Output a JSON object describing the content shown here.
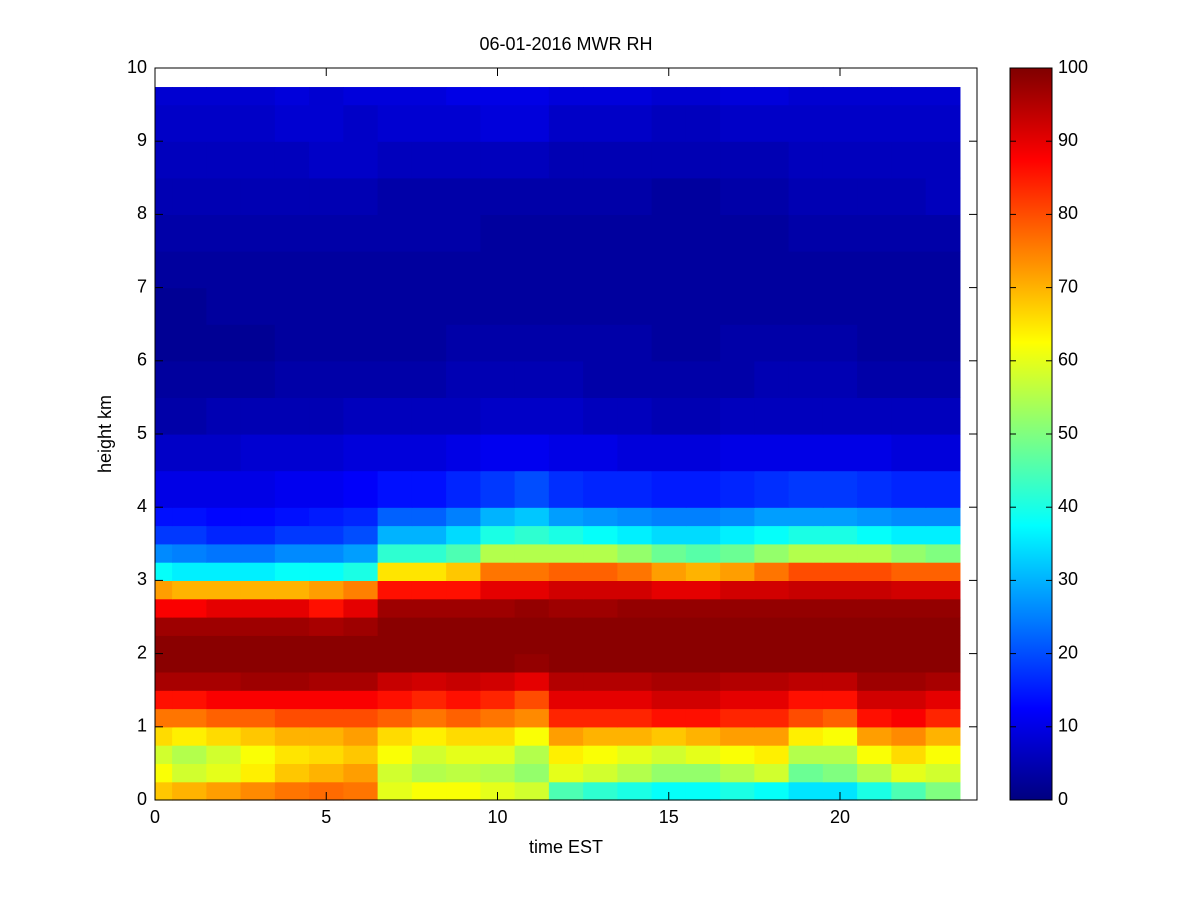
{
  "chart_data": {
    "type": "heatmap",
    "title": "06-01-2016 MWR RH",
    "xlabel": "time EST",
    "ylabel": "height km",
    "colormap": "jet",
    "x_edges": [
      0,
      0.5,
      1.5,
      2.5,
      3.5,
      4.5,
      5.5,
      6.5,
      7.5,
      8.5,
      9.5,
      10.5,
      11.5,
      12.5,
      13.5,
      14.5,
      15.5,
      16.5,
      17.5,
      18.5,
      19.5,
      20.5,
      21.5,
      22.5,
      23.5
    ],
    "y_edges": [
      0,
      0.25,
      0.5,
      0.75,
      1,
      1.25,
      1.5,
      1.75,
      2,
      2.25,
      2.5,
      2.75,
      3,
      3.25,
      3.5,
      3.75,
      4,
      4.5,
      5,
      5.5,
      6,
      6.5,
      7,
      7.5,
      8,
      8.5,
      9,
      9.5,
      9.74
    ],
    "values": [
      [
        68,
        70,
        72,
        74,
        76,
        77,
        76,
        60,
        62,
        62,
        60,
        58,
        45,
        42,
        40,
        38,
        38,
        40,
        38,
        35,
        35,
        40,
        45,
        50
      ],
      [
        62,
        58,
        60,
        64,
        68,
        70,
        72,
        58,
        55,
        56,
        55,
        52,
        60,
        58,
        55,
        52,
        52,
        55,
        58,
        48,
        50,
        55,
        60,
        58
      ],
      [
        58,
        55,
        58,
        62,
        65,
        66,
        68,
        62,
        58,
        60,
        60,
        55,
        64,
        62,
        60,
        58,
        60,
        62,
        64,
        55,
        55,
        62,
        66,
        62
      ],
      [
        66,
        64,
        66,
        68,
        70,
        70,
        72,
        66,
        64,
        66,
        66,
        62,
        72,
        70,
        70,
        68,
        70,
        72,
        72,
        64,
        62,
        72,
        74,
        70
      ],
      [
        76,
        76,
        78,
        78,
        80,
        80,
        80,
        78,
        76,
        78,
        76,
        74,
        84,
        84,
        84,
        86,
        86,
        84,
        84,
        80,
        78,
        86,
        88,
        84
      ],
      [
        86,
        86,
        88,
        88,
        88,
        88,
        88,
        86,
        84,
        86,
        84,
        80,
        90,
        90,
        90,
        92,
        92,
        90,
        90,
        86,
        86,
        92,
        92,
        90
      ],
      [
        96,
        96,
        96,
        97,
        97,
        96,
        96,
        93,
        92,
        93,
        92,
        90,
        95,
        95,
        95,
        96,
        96,
        95,
        95,
        94,
        94,
        97,
        97,
        96
      ],
      [
        99,
        99,
        99,
        99,
        99,
        99,
        99,
        99,
        99,
        99,
        99,
        98,
        99,
        99,
        99,
        99,
        99,
        99,
        99,
        99,
        99,
        99,
        99,
        99
      ],
      [
        99,
        99,
        99,
        99,
        99,
        99,
        99,
        99,
        99,
        99,
        99,
        99,
        99,
        99,
        99,
        99,
        99,
        99,
        99,
        99,
        99,
        99,
        99,
        99
      ],
      [
        97,
        97,
        97,
        97,
        97,
        96,
        97,
        99,
        99,
        99,
        99,
        99,
        99,
        99,
        99,
        99,
        99,
        99,
        99,
        99,
        99,
        99,
        99,
        99
      ],
      [
        88,
        88,
        90,
        90,
        90,
        86,
        90,
        97,
        97,
        97,
        97,
        98,
        97,
        97,
        98,
        98,
        98,
        98,
        98,
        98,
        98,
        98,
        98,
        98
      ],
      [
        72,
        70,
        70,
        70,
        70,
        72,
        75,
        86,
        86,
        86,
        90,
        90,
        92,
        92,
        92,
        90,
        90,
        92,
        92,
        93,
        93,
        93,
        92,
        92
      ],
      [
        38,
        36,
        36,
        36,
        38,
        38,
        40,
        65,
        65,
        68,
        76,
        76,
        78,
        78,
        76,
        72,
        70,
        72,
        76,
        80,
        80,
        80,
        78,
        78
      ],
      [
        26,
        25,
        24,
        24,
        26,
        26,
        28,
        42,
        42,
        45,
        55,
        55,
        55,
        55,
        52,
        48,
        46,
        48,
        52,
        55,
        55,
        55,
        52,
        50
      ],
      [
        18,
        18,
        16,
        16,
        18,
        18,
        20,
        30,
        30,
        34,
        40,
        42,
        40,
        38,
        36,
        34,
        34,
        36,
        38,
        40,
        40,
        38,
        36,
        36
      ],
      [
        14,
        14,
        13,
        13,
        14,
        15,
        16,
        22,
        22,
        25,
        30,
        32,
        28,
        27,
        26,
        25,
        25,
        26,
        28,
        28,
        28,
        27,
        26,
        26
      ],
      [
        10,
        10,
        10,
        10,
        11,
        11,
        12,
        14,
        14,
        16,
        18,
        20,
        17,
        16,
        16,
        15,
        15,
        16,
        17,
        18,
        18,
        17,
        16,
        16
      ],
      [
        7,
        7,
        7,
        8,
        8,
        8,
        9,
        9,
        9,
        10,
        11,
        11,
        10,
        10,
        9,
        9,
        9,
        10,
        10,
        10,
        10,
        10,
        9,
        9
      ],
      [
        4,
        4,
        5,
        5,
        5,
        5,
        6,
        6,
        6,
        6,
        7,
        7,
        7,
        6,
        6,
        5,
        5,
        6,
        6,
        6,
        6,
        6,
        6,
        6
      ],
      [
        3,
        3,
        3,
        3,
        4,
        4,
        4,
        4,
        4,
        5,
        5,
        5,
        5,
        4,
        4,
        4,
        4,
        4,
        5,
        5,
        5,
        4,
        4,
        4
      ],
      [
        2,
        2,
        2,
        2,
        3,
        3,
        3,
        3,
        3,
        4,
        4,
        4,
        4,
        4,
        4,
        3,
        3,
        4,
        4,
        4,
        4,
        3,
        3,
        3
      ],
      [
        2,
        2,
        3,
        3,
        3,
        3,
        3,
        3,
        3,
        3,
        3,
        3,
        3,
        3,
        3,
        3,
        3,
        3,
        3,
        3,
        3,
        3,
        3,
        3
      ],
      [
        3,
        3,
        3,
        3,
        3,
        3,
        3,
        3,
        3,
        3,
        3,
        3,
        3,
        3,
        3,
        3,
        3,
        3,
        3,
        3,
        3,
        3,
        3,
        3
      ],
      [
        4,
        4,
        4,
        4,
        4,
        4,
        4,
        4,
        4,
        4,
        3,
        3,
        3,
        3,
        3,
        3,
        3,
        3,
        3,
        4,
        4,
        4,
        4,
        4
      ],
      [
        5,
        5,
        5,
        5,
        5,
        5,
        5,
        4,
        4,
        4,
        4,
        4,
        4,
        4,
        4,
        3,
        3,
        4,
        4,
        5,
        5,
        5,
        5,
        6
      ],
      [
        6,
        6,
        6,
        6,
        6,
        7,
        7,
        6,
        6,
        6,
        6,
        6,
        5,
        5,
        5,
        5,
        5,
        5,
        5,
        6,
        6,
        6,
        6,
        6
      ],
      [
        7,
        7,
        7,
        7,
        8,
        8,
        7,
        8,
        8,
        8,
        9,
        9,
        7,
        7,
        7,
        6,
        6,
        7,
        7,
        7,
        7,
        7,
        7,
        7
      ],
      [
        8,
        8,
        8,
        8,
        9,
        8,
        9,
        9,
        9,
        10,
        10,
        10,
        9,
        9,
        9,
        8,
        8,
        9,
        9,
        8,
        8,
        8,
        8,
        8
      ]
    ],
    "xlim": [
      0,
      24
    ],
    "ylim": [
      0,
      10
    ],
    "xticks": [
      0,
      5,
      10,
      15,
      20
    ],
    "yticks": [
      0,
      1,
      2,
      3,
      4,
      5,
      6,
      7,
      8,
      9,
      10
    ],
    "clim": [
      0,
      100
    ],
    "cticks": [
      0,
      10,
      20,
      30,
      40,
      50,
      60,
      70,
      80,
      90,
      100
    ]
  }
}
